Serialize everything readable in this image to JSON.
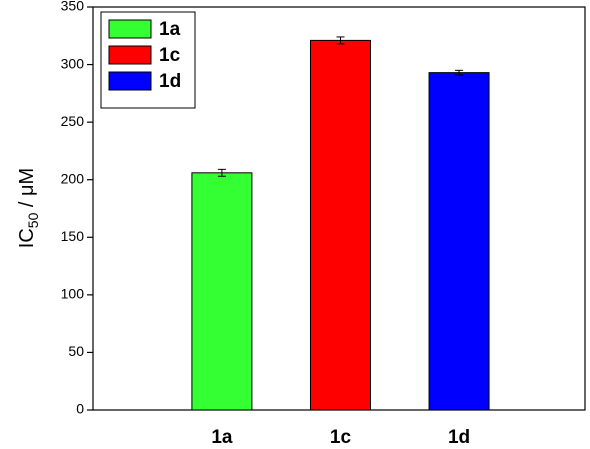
{
  "chart_data": {
    "type": "bar",
    "ylabel_parts": [
      "IC",
      "50",
      " / μM"
    ],
    "categories": [
      "1a",
      "1c",
      "1d"
    ],
    "values": [
      206,
      321,
      293
    ],
    "errors": [
      3,
      3,
      2
    ],
    "colors": [
      "#33ff33",
      "#ff0000",
      "#0000ff"
    ],
    "ylim": [
      0,
      350
    ],
    "yticks": [
      0,
      50,
      100,
      150,
      200,
      250,
      300,
      350
    ],
    "legend": "upper left"
  }
}
